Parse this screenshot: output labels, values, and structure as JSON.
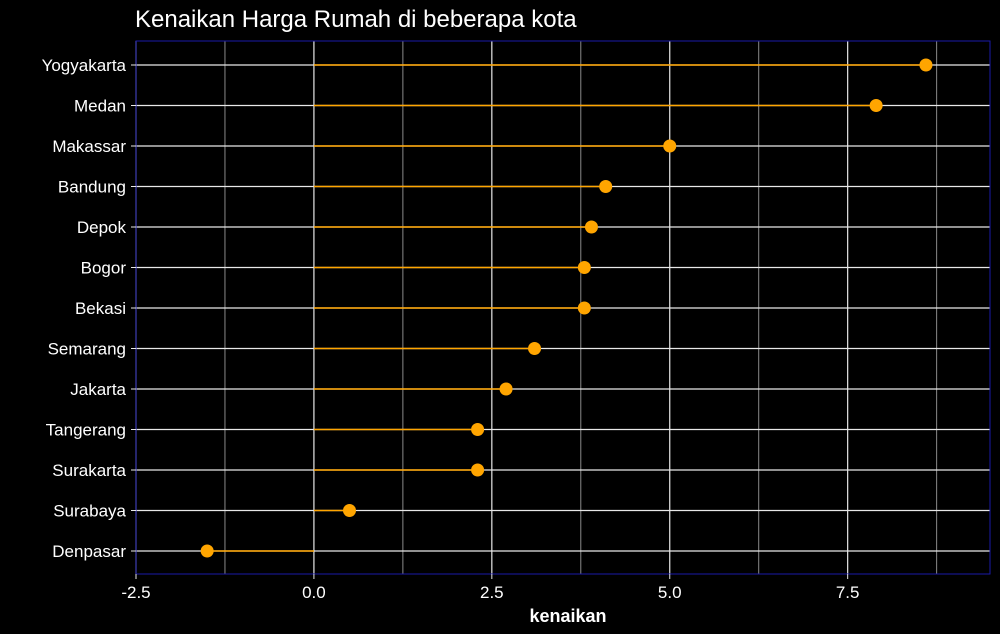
{
  "chart_data": {
    "type": "lollipop",
    "title": "Kenaikan Harga Rumah di beberapa kota",
    "xlabel": "kenaikan",
    "ylabel": "",
    "xlim": [
      -2.5,
      9.5
    ],
    "xticks": [
      -2.5,
      0.0,
      2.5,
      5.0,
      7.5
    ],
    "xtick_labels": [
      "-2.5",
      "0.0",
      "2.5",
      "5.0",
      "7.5"
    ],
    "categories": [
      "Yogyakarta",
      "Medan",
      "Makassar",
      "Bandung",
      "Depok",
      "Bogor",
      "Bekasi",
      "Semarang",
      "Jakarta",
      "Tangerang",
      "Surakarta",
      "Surabaya",
      "Denpasar"
    ],
    "values": [
      8.6,
      7.9,
      5.0,
      4.1,
      3.9,
      3.8,
      3.8,
      3.1,
      2.7,
      2.3,
      2.3,
      0.5,
      -1.5
    ],
    "grid": true,
    "colors": {
      "background": "#000000",
      "panel_border": "#1a1aa8",
      "grid_major": "#e8e8e8",
      "grid_minor": "#8a8a8a",
      "marker": "#FFA500",
      "text": "#ffffff"
    }
  }
}
